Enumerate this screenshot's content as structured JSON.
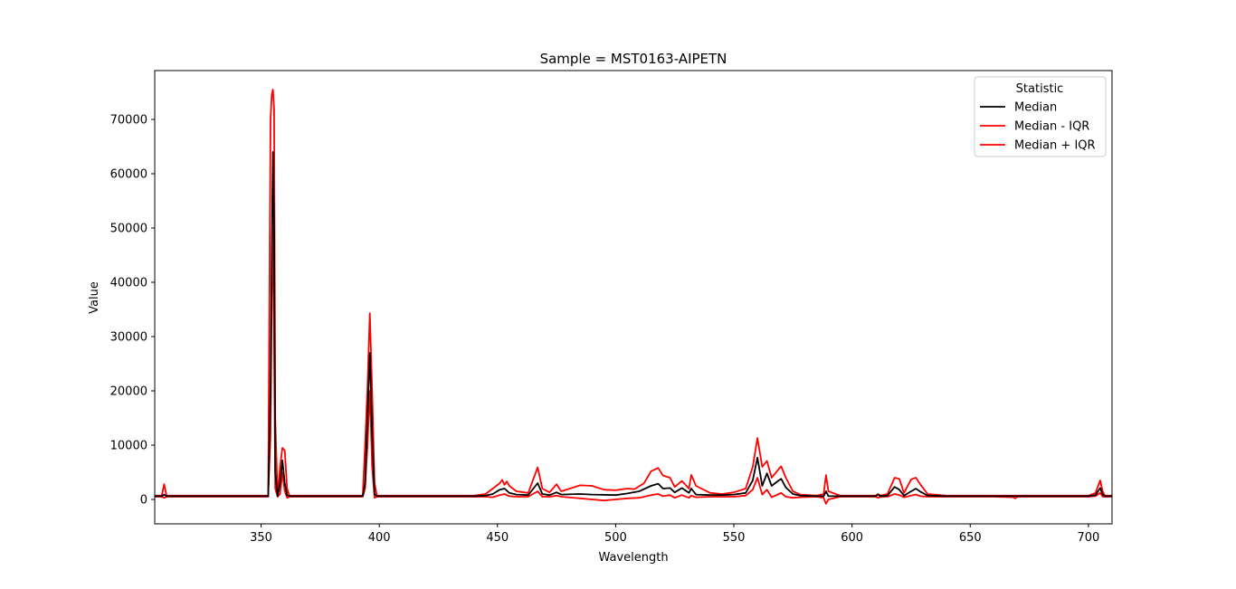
{
  "chart_data": {
    "type": "line",
    "title": "Sample = MST0163-AIPETN",
    "xlabel": "Wavelength",
    "ylabel": "Value",
    "xlim": [
      305,
      710
    ],
    "ylim": [
      -4500,
      79000
    ],
    "xticks": [
      350,
      400,
      450,
      500,
      550,
      600,
      650,
      700
    ],
    "yticks": [
      0,
      10000,
      20000,
      30000,
      40000,
      50000,
      60000,
      70000
    ],
    "grid": false,
    "legend": {
      "title": "Statistic",
      "placement": "top-right"
    },
    "series": [
      {
        "name": "Median",
        "color": "#000000",
        "points": [
          [
            305,
            600
          ],
          [
            308,
            600
          ],
          [
            309,
            900
          ],
          [
            310,
            600
          ],
          [
            330,
            600
          ],
          [
            353,
            600
          ],
          [
            354,
            20000
          ],
          [
            354.5,
            45000
          ],
          [
            355,
            64000
          ],
          [
            355.5,
            50000
          ],
          [
            356,
            5000
          ],
          [
            357,
            600
          ],
          [
            358,
            3000
          ],
          [
            359,
            7200
          ],
          [
            360,
            3000
          ],
          [
            361,
            800
          ],
          [
            362,
            600
          ],
          [
            393,
            600
          ],
          [
            394,
            3000
          ],
          [
            395,
            15000
          ],
          [
            396,
            27000
          ],
          [
            397,
            12000
          ],
          [
            398,
            1000
          ],
          [
            399,
            600
          ],
          [
            440,
            600
          ],
          [
            445,
            700
          ],
          [
            448,
            1000
          ],
          [
            451,
            1800
          ],
          [
            453,
            2000
          ],
          [
            455,
            1200
          ],
          [
            458,
            900
          ],
          [
            463,
            800
          ],
          [
            467,
            3000
          ],
          [
            469,
            1000
          ],
          [
            472,
            800
          ],
          [
            475,
            1300
          ],
          [
            477,
            900
          ],
          [
            485,
            1000
          ],
          [
            490,
            900
          ],
          [
            500,
            800
          ],
          [
            505,
            1100
          ],
          [
            510,
            1500
          ],
          [
            515,
            2500
          ],
          [
            518,
            2900
          ],
          [
            520,
            2000
          ],
          [
            523,
            2100
          ],
          [
            525,
            1300
          ],
          [
            528,
            2100
          ],
          [
            531,
            1200
          ],
          [
            532,
            2000
          ],
          [
            534,
            900
          ],
          [
            540,
            800
          ],
          [
            545,
            800
          ],
          [
            550,
            900
          ],
          [
            555,
            1200
          ],
          [
            558,
            3500
          ],
          [
            560,
            7700
          ],
          [
            562,
            2500
          ],
          [
            564,
            4800
          ],
          [
            566,
            2500
          ],
          [
            569,
            3500
          ],
          [
            570,
            3800
          ],
          [
            572,
            2200
          ],
          [
            575,
            1000
          ],
          [
            578,
            700
          ],
          [
            585,
            600
          ],
          [
            588,
            600
          ],
          [
            589,
            1500
          ],
          [
            590,
            600
          ],
          [
            595,
            600
          ],
          [
            610,
            600
          ],
          [
            611,
            900
          ],
          [
            612,
            600
          ],
          [
            615,
            700
          ],
          [
            618,
            2300
          ],
          [
            620,
            1800
          ],
          [
            622,
            700
          ],
          [
            625,
            1500
          ],
          [
            627,
            2000
          ],
          [
            629,
            1400
          ],
          [
            632,
            700
          ],
          [
            640,
            600
          ],
          [
            660,
            600
          ],
          [
            700,
            600
          ],
          [
            703,
            800
          ],
          [
            705,
            2100
          ],
          [
            706,
            900
          ],
          [
            707,
            600
          ],
          [
            710,
            600
          ]
        ]
      },
      {
        "name": "Median - IQR",
        "color": "#ff0000",
        "points": [
          [
            305,
            500
          ],
          [
            308,
            500
          ],
          [
            309,
            300
          ],
          [
            310,
            500
          ],
          [
            330,
            500
          ],
          [
            353,
            500
          ],
          [
            354,
            12000
          ],
          [
            354.5,
            35000
          ],
          [
            355,
            54000
          ],
          [
            355.5,
            30000
          ],
          [
            356,
            2000
          ],
          [
            357,
            500
          ],
          [
            358,
            1000
          ],
          [
            359,
            5000
          ],
          [
            360,
            1500
          ],
          [
            361,
            300
          ],
          [
            362,
            500
          ],
          [
            393,
            500
          ],
          [
            394,
            2000
          ],
          [
            395,
            10000
          ],
          [
            396,
            20000
          ],
          [
            397,
            6000
          ],
          [
            398,
            300
          ],
          [
            399,
            500
          ],
          [
            440,
            500
          ],
          [
            445,
            500
          ],
          [
            448,
            400
          ],
          [
            451,
            800
          ],
          [
            453,
            1000
          ],
          [
            455,
            600
          ],
          [
            458,
            500
          ],
          [
            463,
            500
          ],
          [
            467,
            1500
          ],
          [
            469,
            500
          ],
          [
            472,
            500
          ],
          [
            475,
            700
          ],
          [
            477,
            500
          ],
          [
            485,
            200
          ],
          [
            490,
            0
          ],
          [
            495,
            -200
          ],
          [
            500,
            0
          ],
          [
            505,
            200
          ],
          [
            510,
            300
          ],
          [
            515,
            800
          ],
          [
            518,
            1000
          ],
          [
            520,
            600
          ],
          [
            523,
            800
          ],
          [
            525,
            300
          ],
          [
            528,
            800
          ],
          [
            531,
            300
          ],
          [
            532,
            700
          ],
          [
            534,
            400
          ],
          [
            540,
            500
          ],
          [
            545,
            500
          ],
          [
            550,
            500
          ],
          [
            555,
            700
          ],
          [
            558,
            1800
          ],
          [
            560,
            4000
          ],
          [
            562,
            900
          ],
          [
            564,
            1800
          ],
          [
            566,
            400
          ],
          [
            569,
            1000
          ],
          [
            570,
            1200
          ],
          [
            572,
            500
          ],
          [
            575,
            300
          ],
          [
            578,
            400
          ],
          [
            585,
            500
          ],
          [
            588,
            300
          ],
          [
            589,
            -800
          ],
          [
            590,
            0
          ],
          [
            595,
            500
          ],
          [
            610,
            500
          ],
          [
            611,
            300
          ],
          [
            612,
            500
          ],
          [
            615,
            500
          ],
          [
            618,
            1000
          ],
          [
            620,
            800
          ],
          [
            622,
            400
          ],
          [
            625,
            700
          ],
          [
            627,
            900
          ],
          [
            629,
            600
          ],
          [
            632,
            500
          ],
          [
            640,
            500
          ],
          [
            660,
            500
          ],
          [
            668,
            400
          ],
          [
            669,
            200
          ],
          [
            670,
            500
          ],
          [
            700,
            500
          ],
          [
            703,
            600
          ],
          [
            705,
            1200
          ],
          [
            706,
            500
          ],
          [
            707,
            500
          ],
          [
            710,
            500
          ]
        ]
      },
      {
        "name": "Median + IQR",
        "color": "#ff0000",
        "points": [
          [
            305,
            700
          ],
          [
            308,
            700
          ],
          [
            309,
            2800
          ],
          [
            310,
            700
          ],
          [
            330,
            700
          ],
          [
            353,
            700
          ],
          [
            354,
            70000
          ],
          [
            354.5,
            74500
          ],
          [
            355,
            75500
          ],
          [
            355.5,
            72000
          ],
          [
            356,
            15000
          ],
          [
            357,
            700
          ],
          [
            358,
            6000
          ],
          [
            359,
            9500
          ],
          [
            360,
            9000
          ],
          [
            361,
            2000
          ],
          [
            362,
            700
          ],
          [
            393,
            700
          ],
          [
            394,
            10000
          ],
          [
            395,
            20500
          ],
          [
            396,
            34300
          ],
          [
            397,
            20000
          ],
          [
            398,
            3000
          ],
          [
            399,
            700
          ],
          [
            440,
            700
          ],
          [
            445,
            1000
          ],
          [
            448,
            2000
          ],
          [
            451,
            3000
          ],
          [
            452,
            3600
          ],
          [
            453,
            2700
          ],
          [
            454,
            3300
          ],
          [
            455,
            2500
          ],
          [
            458,
            1500
          ],
          [
            463,
            1200
          ],
          [
            467,
            5900
          ],
          [
            469,
            2000
          ],
          [
            472,
            1300
          ],
          [
            475,
            2800
          ],
          [
            477,
            1500
          ],
          [
            485,
            2600
          ],
          [
            490,
            2500
          ],
          [
            495,
            1800
          ],
          [
            500,
            1700
          ],
          [
            505,
            2000
          ],
          [
            508,
            1900
          ],
          [
            512,
            3000
          ],
          [
            515,
            5200
          ],
          [
            518,
            5800
          ],
          [
            520,
            4400
          ],
          [
            523,
            4000
          ],
          [
            525,
            2300
          ],
          [
            528,
            3400
          ],
          [
            531,
            2000
          ],
          [
            532,
            4500
          ],
          [
            534,
            2500
          ],
          [
            540,
            1200
          ],
          [
            545,
            1000
          ],
          [
            550,
            1300
          ],
          [
            555,
            2000
          ],
          [
            558,
            6000
          ],
          [
            560,
            11300
          ],
          [
            562,
            6000
          ],
          [
            564,
            7100
          ],
          [
            566,
            4000
          ],
          [
            569,
            5600
          ],
          [
            570,
            6100
          ],
          [
            572,
            4000
          ],
          [
            575,
            1500
          ],
          [
            578,
            900
          ],
          [
            585,
            700
          ],
          [
            588,
            1000
          ],
          [
            589,
            4500
          ],
          [
            590,
            1500
          ],
          [
            595,
            700
          ],
          [
            610,
            700
          ],
          [
            611,
            1000
          ],
          [
            612,
            700
          ],
          [
            615,
            1000
          ],
          [
            618,
            4000
          ],
          [
            620,
            3800
          ],
          [
            622,
            1200
          ],
          [
            625,
            3700
          ],
          [
            627,
            4000
          ],
          [
            629,
            2700
          ],
          [
            632,
            1000
          ],
          [
            640,
            700
          ],
          [
            660,
            700
          ],
          [
            700,
            700
          ],
          [
            703,
            1200
          ],
          [
            705,
            3500
          ],
          [
            706,
            1500
          ],
          [
            707,
            700
          ],
          [
            710,
            700
          ]
        ]
      }
    ]
  }
}
